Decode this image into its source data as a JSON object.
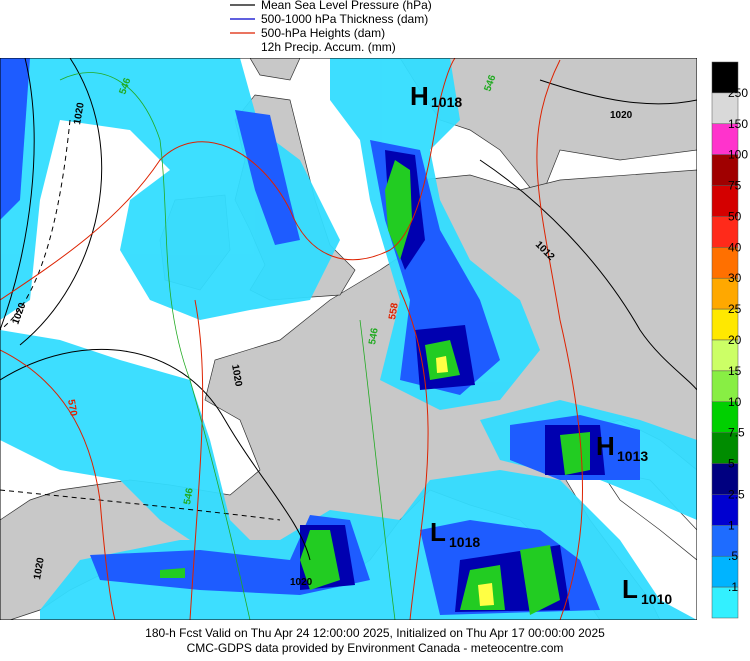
{
  "legend": [
    {
      "label": "Mean Sea Level Pressure (hPa)",
      "color": "#000000"
    },
    {
      "label": "500-1000 hPa Thickness (dam)",
      "color": "#0000cc"
    },
    {
      "label": "500-hPa Heights (dam)",
      "color": "#dd2200"
    },
    {
      "label": "12h Precip. Accum. (mm)"
    }
  ],
  "colorbar": {
    "labels": [
      "250",
      "150",
      "100",
      "75",
      "50",
      "40",
      "30",
      "25",
      "20",
      "15",
      "10",
      "7.5",
      "5",
      "2.5",
      "1",
      ".5",
      ".1"
    ],
    "colors": [
      "#000000",
      "#d9d9d9",
      "#ff33cc",
      "#a00000",
      "#d40000",
      "#ff2a1a",
      "#ff7000",
      "#ffa800",
      "#ffe800",
      "#ccff66",
      "#88ee44",
      "#00d000",
      "#008c00",
      "#000080",
      "#0000d0",
      "#1e6cff",
      "#00b4ff",
      "#33f0ff"
    ]
  },
  "pressure_centers": [
    {
      "letter": "H",
      "value": "1018"
    },
    {
      "letter": "H",
      "value": "1013"
    },
    {
      "letter": "L",
      "value": "1018"
    },
    {
      "letter": "L",
      "value": "1010"
    }
  ],
  "contour_labels": [
    "1020",
    "1020",
    "1020",
    "1012",
    "1020",
    "1020",
    "570",
    "558",
    "546",
    "546",
    "546",
    "546",
    "1020"
  ],
  "footer": [
    "180-h Fcst Valid on Thu Apr 24 12:00:00 2025, Initialized on Thu Apr 17 00:00:00 2025",
    "CMC-GDPS data provided by Environment Canada - meteocentre.com"
  ]
}
